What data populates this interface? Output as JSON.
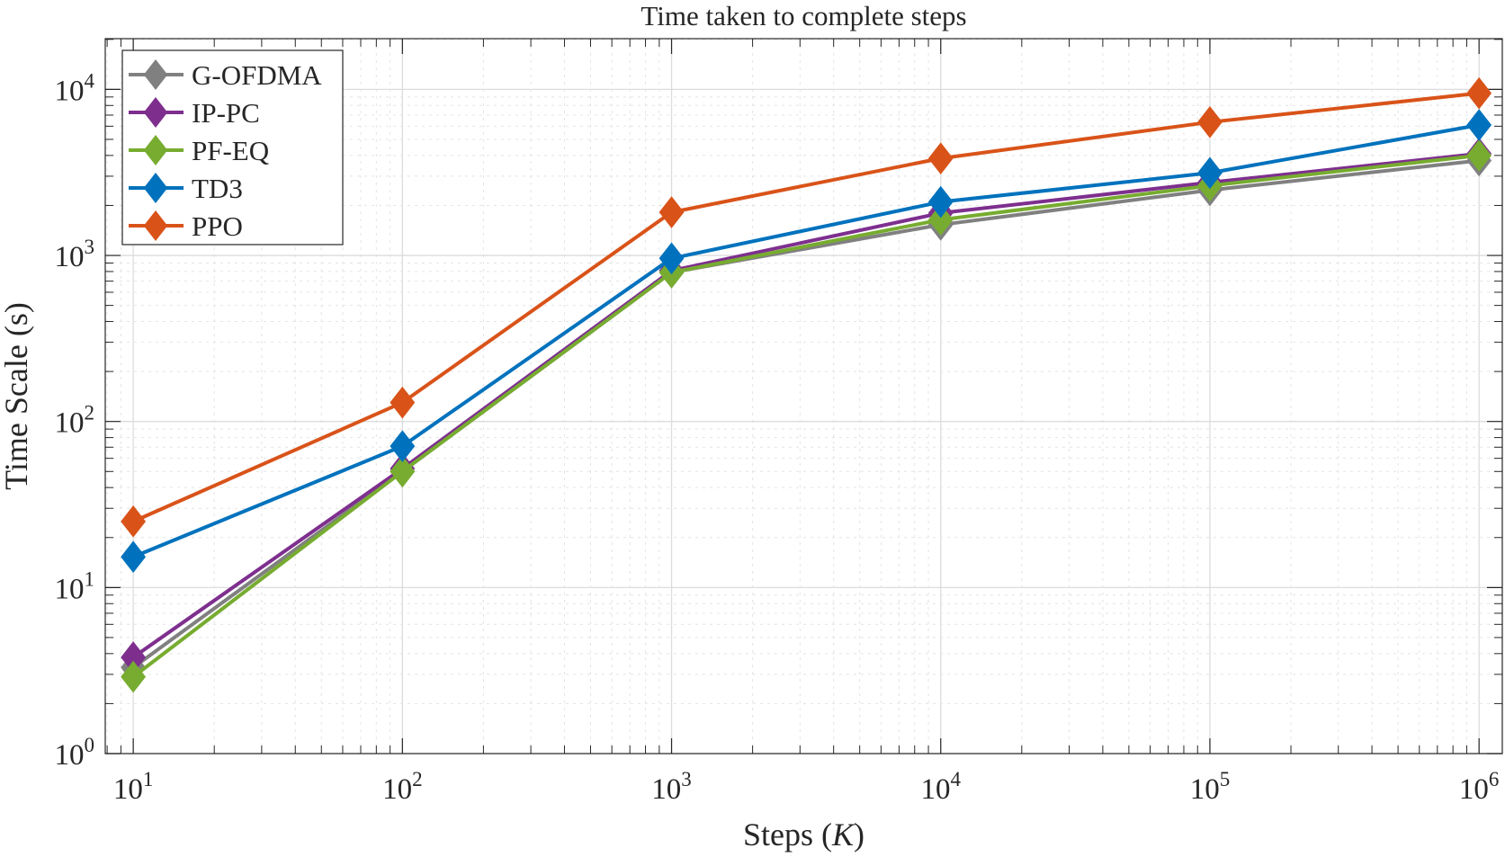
{
  "chart_data": {
    "type": "line",
    "title": "Time taken to complete steps",
    "xlabel": "Steps (K)",
    "xlabel_parts": {
      "before": "Steps (",
      "italic": "K",
      "after": ")"
    },
    "ylabel": "Time Scale (s)",
    "xscale": "log",
    "yscale": "log",
    "xlim": [
      7.87,
      1220000
    ],
    "ylim": [
      1,
      20200
    ],
    "grid": "major and minor",
    "legend_position": "top-left",
    "x": [
      10,
      100,
      1000,
      10000,
      100000,
      1000000
    ],
    "xticks": [
      {
        "base": "10",
        "exp": "1"
      },
      {
        "base": "10",
        "exp": "2"
      },
      {
        "base": "10",
        "exp": "3"
      },
      {
        "base": "10",
        "exp": "4"
      },
      {
        "base": "10",
        "exp": "5"
      },
      {
        "base": "10",
        "exp": "6"
      }
    ],
    "yticks": [
      {
        "base": "10",
        "exp": "0"
      },
      {
        "base": "10",
        "exp": "1"
      },
      {
        "base": "10",
        "exp": "2"
      },
      {
        "base": "10",
        "exp": "3"
      },
      {
        "base": "10",
        "exp": "4"
      }
    ],
    "series": [
      {
        "name": "G-OFDMA",
        "color": "#808080",
        "marker": "diamond",
        "values": [
          3.3,
          50,
          790,
          1530,
          2470,
          3730
        ]
      },
      {
        "name": "IP-PC",
        "color": "#7E2F8E",
        "marker": "diamond",
        "values": [
          3.8,
          52,
          810,
          1800,
          2750,
          4100
        ]
      },
      {
        "name": "PF-EQ",
        "color": "#77AC30",
        "marker": "diamond",
        "values": [
          2.9,
          50,
          790,
          1640,
          2630,
          4000
        ]
      },
      {
        "name": "TD3",
        "color": "#0072BD",
        "marker": "diamond",
        "values": [
          15.3,
          71,
          960,
          2100,
          3140,
          6100
        ]
      },
      {
        "name": "PPO",
        "color": "#D95319",
        "marker": "diamond",
        "values": [
          25,
          130,
          1820,
          3840,
          6350,
          9480
        ]
      }
    ]
  }
}
